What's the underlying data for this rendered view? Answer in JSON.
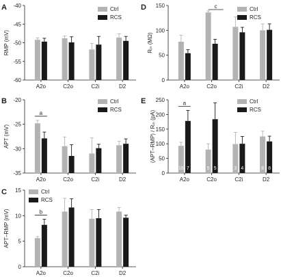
{
  "colors": {
    "ctrl": "#b3b3b3",
    "rcs": "#1a1a1a",
    "axis": "#231f20"
  },
  "chart_data": [
    {
      "panel": "A",
      "type": "bar",
      "categories": [
        "A2o",
        "C2o",
        "C2i",
        "D2"
      ],
      "ylabel": "RMP (mV)",
      "ylim": [
        -60,
        -40
      ],
      "yticks": [
        -60,
        -55,
        -50,
        -45,
        -40
      ],
      "ytick_labels": [
        "-60",
        "-55",
        "-50",
        "-45",
        "-40"
      ],
      "grid": false,
      "legend": "top-right",
      "series": [
        {
          "name": "Ctrl",
          "values": [
            -49.2,
            -48.8,
            -51.8,
            -48.6
          ],
          "err": [
            0.5,
            0.6,
            1.6,
            1.0
          ]
        },
        {
          "name": "RCS",
          "values": [
            -49.7,
            -49.9,
            -50.5,
            -49.5
          ],
          "err": [
            0.9,
            1.5,
            2.2,
            1.2
          ]
        }
      ],
      "annotations": []
    },
    {
      "panel": "B",
      "type": "bar",
      "categories": [
        "A2o",
        "C2o",
        "C2i",
        "D2"
      ],
      "ylabel": "APT (mV)",
      "ylim": [
        -35,
        -20
      ],
      "yticks": [
        -35,
        -30,
        -25,
        -20
      ],
      "ytick_labels": [
        "-35",
        "-30",
        "-25",
        "-20"
      ],
      "grid": false,
      "legend": "top-right",
      "series": [
        {
          "name": "Ctrl",
          "values": [
            -24.8,
            -29.5,
            -31.0,
            -29.3
          ],
          "err": [
            0.6,
            1.9,
            3.2,
            0.8
          ]
        },
        {
          "name": "RCS",
          "values": [
            -27.9,
            -31.5,
            -29.9,
            -29.0
          ],
          "err": [
            1.3,
            2.3,
            0.8,
            1.0
          ]
        }
      ],
      "annotations": [
        {
          "label": "a",
          "from": 0,
          "to": 1
        }
      ]
    },
    {
      "panel": "C",
      "type": "bar",
      "categories": [
        "A2o",
        "C2o",
        "C2i",
        "D2"
      ],
      "ylabel": "APT–RMP (mV)",
      "ylim": [
        0,
        15
      ],
      "yticks": [
        0,
        5,
        10,
        15
      ],
      "ytick_labels": [
        "0",
        "5",
        "10",
        "15"
      ],
      "grid": false,
      "legend": "top-left",
      "series": [
        {
          "name": "Ctrl",
          "values": [
            5.6,
            10.8,
            9.4,
            10.8
          ],
          "err": [
            0.3,
            2.6,
            1.8,
            0.8
          ]
        },
        {
          "name": "RCS",
          "values": [
            8.2,
            11.6,
            9.5,
            9.6
          ],
          "err": [
            1.1,
            1.7,
            1.7,
            0.5
          ]
        }
      ],
      "annotations": [
        {
          "label": "b",
          "from": 0,
          "to": 1
        }
      ]
    },
    {
      "panel": "D",
      "type": "bar",
      "categories": [
        "A2o",
        "C2o",
        "C2i",
        "D2"
      ],
      "ylabel": "Rᵢₙ (MΩ)",
      "ylim": [
        0,
        150
      ],
      "yticks": [
        0,
        50,
        100,
        150
      ],
      "ytick_labels": [
        "0",
        "50",
        "100",
        "150"
      ],
      "grid": false,
      "legend": "top-right",
      "series": [
        {
          "name": "Ctrl",
          "values": [
            77,
            136,
            107,
            100
          ],
          "err": [
            13,
            3,
            20,
            13
          ]
        },
        {
          "name": "RCS",
          "values": [
            54,
            73,
            96,
            101
          ],
          "err": [
            7,
            9,
            10,
            12
          ]
        }
      ],
      "annotations": [
        {
          "label": "c",
          "from": 2,
          "to": 3
        }
      ]
    },
    {
      "panel": "E",
      "type": "bar",
      "categories": [
        "A2o",
        "C2o",
        "C2i",
        "D2"
      ],
      "ylabel": "(APT–RMP) / Rᵢₙ (pA)",
      "ylim": [
        0,
        250
      ],
      "yticks": [
        0,
        50,
        100,
        150,
        200,
        250
      ],
      "ytick_labels": [
        "0",
        "50",
        "100",
        "150",
        "200",
        "250"
      ],
      "grid": false,
      "legend": "top-right",
      "series": [
        {
          "name": "Ctrl",
          "values": [
            93,
            80,
            99,
            125
          ],
          "err": [
            12,
            20,
            40,
            18
          ],
          "n": [
            "16",
            "5",
            "3",
            "8"
          ]
        },
        {
          "name": "RCS",
          "values": [
            178,
            184,
            100,
            108
          ],
          "err": [
            36,
            56,
            25,
            18
          ],
          "n": [
            "7",
            "5",
            "4",
            "8"
          ]
        }
      ],
      "annotations": [
        {
          "label": "a",
          "from": 0,
          "to": 1
        }
      ]
    }
  ]
}
